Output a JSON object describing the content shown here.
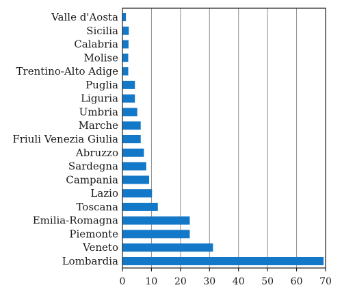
{
  "chart_data": {
    "type": "bar",
    "orientation": "horizontal",
    "title": "",
    "xlabel": "",
    "ylabel": "",
    "xlim": [
      0,
      70
    ],
    "xticks": [
      0,
      10,
      20,
      30,
      40,
      50,
      60,
      70
    ],
    "grid": "vertical",
    "bar_color": "#1478c8",
    "categories": [
      "Valle d'Aosta",
      "Sicilia",
      "Calabria",
      "Molise",
      "Trentino-Alto Adige",
      "Puglia",
      "Liguria",
      "Umbria",
      "Marche",
      "Friuli Venezia Giulia",
      "Abruzzo",
      "Sardegna",
      "Campania",
      "Lazio",
      "Toscana",
      "Emilia-Romagna",
      "Piemonte",
      "Veneto",
      "Lombardia"
    ],
    "values": [
      1.2,
      2.2,
      2.1,
      2.0,
      2.0,
      4.3,
      4.3,
      5.1,
      6.3,
      6.3,
      7.4,
      8.2,
      9.2,
      10.2,
      12.2,
      23.2,
      23.2,
      31.2,
      69.3
    ]
  }
}
